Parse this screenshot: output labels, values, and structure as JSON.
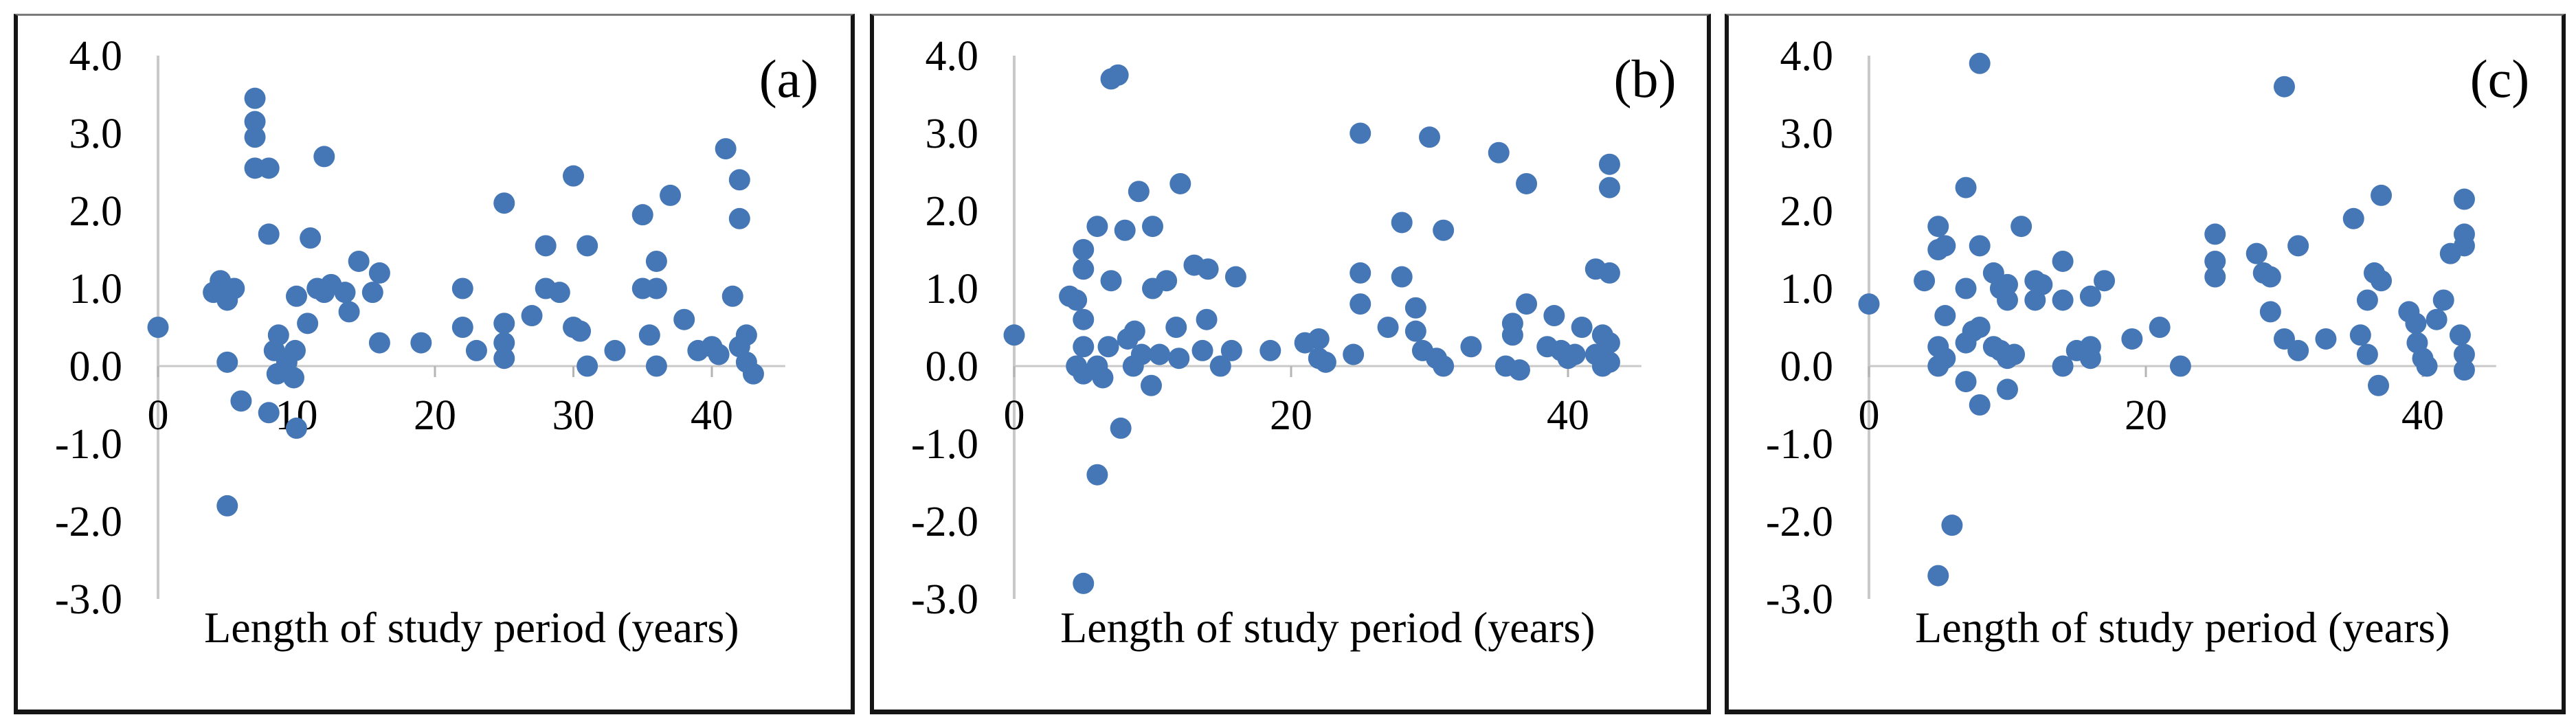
{
  "figure": {
    "background": "#ffffff",
    "marker_color": "#4577b6",
    "axis_line_color": "#c9c9c9",
    "tick_color": "#b5b5b5",
    "border_color": "#151515",
    "border_top_color": "#7a7a7a"
  },
  "chart_data": [
    {
      "type": "scatter",
      "panel_label": "(a)",
      "xlabel": "Length of study period (years)",
      "ylabel": "",
      "xlim": [
        0,
        45.3
      ],
      "ylim": [
        -3.0,
        4.0
      ],
      "grid": false,
      "legend": "none",
      "x_ticks": [
        0,
        10,
        20,
        30,
        40
      ],
      "y_ticks": [
        "4.0",
        "3.0",
        "2.0",
        "1.0",
        "0.0",
        "-1.0",
        "-2.0",
        "-3.0"
      ],
      "y_tick_values": [
        4,
        3,
        2,
        1,
        0,
        -1,
        -2,
        -3
      ],
      "points": [
        [
          0,
          0.5
        ],
        [
          4,
          0.95
        ],
        [
          4.5,
          1.1
        ],
        [
          5,
          0.85
        ],
        [
          5.5,
          1.0
        ],
        [
          5,
          0.05
        ],
        [
          6,
          -0.45
        ],
        [
          5,
          -1.8
        ],
        [
          7,
          3.45
        ],
        [
          7,
          3.15
        ],
        [
          7,
          2.95
        ],
        [
          7,
          2.55
        ],
        [
          8,
          2.55
        ],
        [
          8,
          1.7
        ],
        [
          8,
          -0.6
        ],
        [
          8.4,
          0.2
        ],
        [
          8.7,
          0.4
        ],
        [
          9.3,
          0.05
        ],
        [
          8.6,
          -0.1
        ],
        [
          9.9,
          0.2
        ],
        [
          9.8,
          -0.15
        ],
        [
          10,
          -0.8
        ],
        [
          10,
          0.9
        ],
        [
          10.8,
          0.55
        ],
        [
          11,
          1.65
        ],
        [
          12,
          2.7
        ],
        [
          11.5,
          1.0
        ],
        [
          12,
          0.95
        ],
        [
          12.5,
          1.05
        ],
        [
          13.5,
          0.95
        ],
        [
          13.8,
          0.7
        ],
        [
          14.5,
          1.35
        ],
        [
          15.5,
          0.95
        ],
        [
          16,
          1.2
        ],
        [
          16,
          0.3
        ],
        [
          19,
          0.3
        ],
        [
          22,
          1.0
        ],
        [
          22,
          0.5
        ],
        [
          23,
          0.2
        ],
        [
          25,
          2.1
        ],
        [
          25,
          0.55
        ],
        [
          25,
          0.3
        ],
        [
          25,
          0.1
        ],
        [
          27,
          0.65
        ],
        [
          28,
          1.55
        ],
        [
          28,
          1.0
        ],
        [
          29,
          0.95
        ],
        [
          30,
          2.45
        ],
        [
          30,
          0.5
        ],
        [
          30.5,
          0.45
        ],
        [
          31,
          1.55
        ],
        [
          31,
          0.0
        ],
        [
          33,
          0.2
        ],
        [
          35,
          1.95
        ],
        [
          35,
          1.0
        ],
        [
          36,
          1.0
        ],
        [
          35.5,
          0.4
        ],
        [
          37,
          2.2
        ],
        [
          36,
          1.35
        ],
        [
          36,
          0.0
        ],
        [
          38,
          0.6
        ],
        [
          39,
          0.2
        ],
        [
          40,
          0.25
        ],
        [
          40.5,
          0.15
        ],
        [
          41,
          2.8
        ],
        [
          41.5,
          0.9
        ],
        [
          42,
          0.25
        ],
        [
          42,
          2.4
        ],
        [
          42,
          1.9
        ],
        [
          42.5,
          0.4
        ],
        [
          42.5,
          0.05
        ],
        [
          43,
          -0.1
        ]
      ]
    },
    {
      "type": "scatter",
      "panel_label": "(b)",
      "xlabel": "Length of study period (years)",
      "ylabel": "",
      "xlim": [
        0,
        45.3
      ],
      "ylim": [
        -3.0,
        4.0
      ],
      "grid": false,
      "legend": "none",
      "x_ticks": [
        0,
        20,
        40
      ],
      "y_ticks": [
        "4.0",
        "3.0",
        "2.0",
        "1.0",
        "0.0",
        "-1.0",
        "-2.0",
        "-3.0"
      ],
      "y_tick_values": [
        4,
        3,
        2,
        1,
        0,
        -1,
        -2,
        -3
      ],
      "points": [
        [
          0,
          0.4
        ],
        [
          7,
          3.7
        ],
        [
          7.5,
          3.75
        ],
        [
          9,
          2.25
        ],
        [
          12,
          2.35
        ],
        [
          6,
          1.8
        ],
        [
          8,
          1.75
        ],
        [
          10,
          1.8
        ],
        [
          5,
          1.5
        ],
        [
          5,
          1.25
        ],
        [
          7,
          1.1
        ],
        [
          4,
          0.9
        ],
        [
          4.5,
          0.85
        ],
        [
          5,
          0.6
        ],
        [
          10,
          1.0
        ],
        [
          11,
          1.1
        ],
        [
          13,
          1.3
        ],
        [
          14,
          1.25
        ],
        [
          16,
          1.15
        ],
        [
          5,
          0.25
        ],
        [
          4.5,
          0.0
        ],
        [
          5,
          -0.1
        ],
        [
          6,
          0.0
        ],
        [
          6.4,
          -0.15
        ],
        [
          6.8,
          0.25
        ],
        [
          7.7,
          -0.8
        ],
        [
          8.2,
          0.35
        ],
        [
          8.7,
          0.45
        ],
        [
          8.6,
          0.0
        ],
        [
          9.2,
          0.15
        ],
        [
          9.9,
          -0.25
        ],
        [
          10.5,
          0.15
        ],
        [
          11.7,
          0.5
        ],
        [
          11.9,
          0.1
        ],
        [
          13.6,
          0.2
        ],
        [
          13.9,
          0.6
        ],
        [
          14.9,
          0.0
        ],
        [
          15.7,
          0.2
        ],
        [
          18.5,
          0.2
        ],
        [
          6,
          -1.4
        ],
        [
          5,
          -2.8
        ],
        [
          21,
          0.3
        ],
        [
          22,
          0.35
        ],
        [
          22,
          0.1
        ],
        [
          22.5,
          0.05
        ],
        [
          24.5,
          0.15
        ],
        [
          25,
          3.0
        ],
        [
          25,
          1.2
        ],
        [
          25,
          0.8
        ],
        [
          27,
          0.5
        ],
        [
          28,
          1.85
        ],
        [
          28,
          1.15
        ],
        [
          29,
          0.75
        ],
        [
          29,
          0.45
        ],
        [
          29.5,
          0.2
        ],
        [
          30.5,
          0.1
        ],
        [
          31,
          0.0
        ],
        [
          30,
          2.95
        ],
        [
          31,
          1.75
        ],
        [
          33,
          0.25
        ],
        [
          35,
          2.75
        ],
        [
          37,
          2.35
        ],
        [
          36,
          0.55
        ],
        [
          36,
          0.4
        ],
        [
          35.5,
          0.0
        ],
        [
          36.5,
          -0.05
        ],
        [
          37,
          0.8
        ],
        [
          39,
          0.65
        ],
        [
          38.5,
          0.25
        ],
        [
          39.5,
          0.2
        ],
        [
          40,
          0.1
        ],
        [
          40.5,
          0.15
        ],
        [
          42,
          1.25
        ],
        [
          43,
          1.2
        ],
        [
          41,
          0.5
        ],
        [
          42.5,
          0.4
        ],
        [
          43,
          2.6
        ],
        [
          43,
          2.3
        ],
        [
          42,
          0.15
        ],
        [
          42.5,
          0.0
        ],
        [
          43,
          0.3
        ],
        [
          43,
          0.05
        ]
      ]
    },
    {
      "type": "scatter",
      "panel_label": "(c)",
      "xlabel": "Length of study period (years)",
      "ylabel": "",
      "xlim": [
        0,
        45.3
      ],
      "ylim": [
        -3.0,
        4.0
      ],
      "grid": false,
      "legend": "none",
      "x_ticks": [
        0,
        20,
        40
      ],
      "y_ticks": [
        "4.0",
        "3.0",
        "2.0",
        "1.0",
        "0.0",
        "-1.0",
        "-2.0",
        "-3.0"
      ],
      "y_tick_values": [
        4,
        3,
        2,
        1,
        0,
        -1,
        -2,
        -3
      ],
      "points": [
        [
          0,
          0.8
        ],
        [
          8,
          3.9
        ],
        [
          7,
          2.3
        ],
        [
          5,
          1.8
        ],
        [
          5,
          1.5
        ],
        [
          5.5,
          1.55
        ],
        [
          8,
          1.55
        ],
        [
          4,
          1.1
        ],
        [
          5.5,
          0.65
        ],
        [
          7,
          1.0
        ],
        [
          9,
          1.2
        ],
        [
          9.5,
          1.0
        ],
        [
          10,
          1.05
        ],
        [
          10,
          0.85
        ],
        [
          5,
          0.25
        ],
        [
          5,
          0.0
        ],
        [
          5.5,
          0.1
        ],
        [
          7,
          0.3
        ],
        [
          7.5,
          0.45
        ],
        [
          8,
          0.5
        ],
        [
          7,
          -0.2
        ],
        [
          8,
          -0.5
        ],
        [
          9,
          0.25
        ],
        [
          9.5,
          0.2
        ],
        [
          10,
          0.1
        ],
        [
          10.5,
          0.15
        ],
        [
          10,
          -0.3
        ],
        [
          11,
          1.8
        ],
        [
          12,
          1.1
        ],
        [
          12,
          0.85
        ],
        [
          12.5,
          1.05
        ],
        [
          14,
          1.35
        ],
        [
          14,
          0.85
        ],
        [
          14,
          0.0
        ],
        [
          15,
          0.2
        ],
        [
          16,
          0.1
        ],
        [
          16,
          0.25
        ],
        [
          16,
          0.9
        ],
        [
          17,
          1.1
        ],
        [
          19,
          0.35
        ],
        [
          6,
          -2.05
        ],
        [
          5,
          -2.7
        ],
        [
          21,
          0.5
        ],
        [
          22.5,
          0.0
        ],
        [
          25,
          1.7
        ],
        [
          25,
          1.35
        ],
        [
          25,
          1.15
        ],
        [
          28,
          1.45
        ],
        [
          28.5,
          1.2
        ],
        [
          29,
          1.15
        ],
        [
          31,
          1.55
        ],
        [
          29,
          0.7
        ],
        [
          30,
          0.35
        ],
        [
          31,
          0.2
        ],
        [
          30,
          3.6
        ],
        [
          33,
          0.35
        ],
        [
          35,
          1.9
        ],
        [
          36,
          0.85
        ],
        [
          35.5,
          0.4
        ],
        [
          36,
          0.15
        ],
        [
          36.5,
          1.2
        ],
        [
          37,
          1.1
        ],
        [
          37,
          2.2
        ],
        [
          36.8,
          -0.25
        ],
        [
          39,
          0.7
        ],
        [
          39.5,
          0.55
        ],
        [
          39.6,
          0.3
        ],
        [
          40,
          0.1
        ],
        [
          40.3,
          0.0
        ],
        [
          41,
          0.6
        ],
        [
          41.5,
          0.85
        ],
        [
          42,
          1.45
        ],
        [
          43,
          1.55
        ],
        [
          43,
          1.7
        ],
        [
          43,
          2.15
        ],
        [
          42.7,
          0.4
        ],
        [
          43,
          0.15
        ],
        [
          43,
          -0.05
        ]
      ]
    }
  ]
}
